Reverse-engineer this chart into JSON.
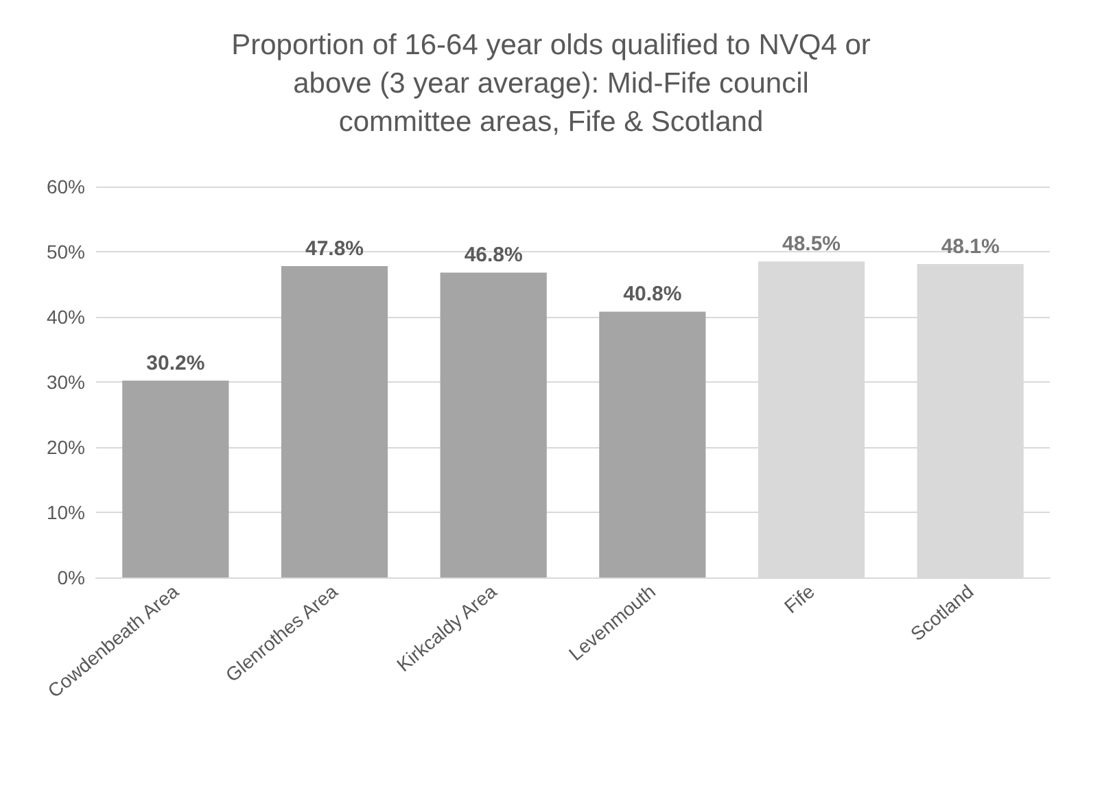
{
  "chart_data": {
    "type": "bar",
    "title": "Proportion of 16-64 year olds qualified to NVQ4 or above (3 year average): Mid-Fife council committee areas, Fife & Scotland",
    "categories": [
      "Cowdenbeath Area",
      "Glenrothes Area",
      "Kirkcaldy Area",
      "Levenmouth",
      "Fife",
      "Scotland"
    ],
    "values": [
      30.2,
      47.8,
      46.8,
      40.8,
      48.5,
      48.1
    ],
    "colors": [
      "#a5a5a5",
      "#a5a5a5",
      "#a5a5a5",
      "#a5a5a5",
      "#d9d9d9",
      "#d9d9d9"
    ],
    "value_labels": [
      "30.2%",
      "47.8%",
      "46.8%",
      "40.8%",
      "48.5%",
      "48.1%"
    ],
    "ylim": [
      0,
      60
    ],
    "yticks": [
      {
        "value": 0,
        "label": "0%"
      },
      {
        "value": 10,
        "label": "10%"
      },
      {
        "value": 20,
        "label": "20%"
      },
      {
        "value": 30,
        "label": "30%"
      },
      {
        "value": 40,
        "label": "40%"
      },
      {
        "value": 50,
        "label": "50%"
      },
      {
        "value": 60,
        "label": "60%"
      }
    ],
    "grid": "y"
  }
}
